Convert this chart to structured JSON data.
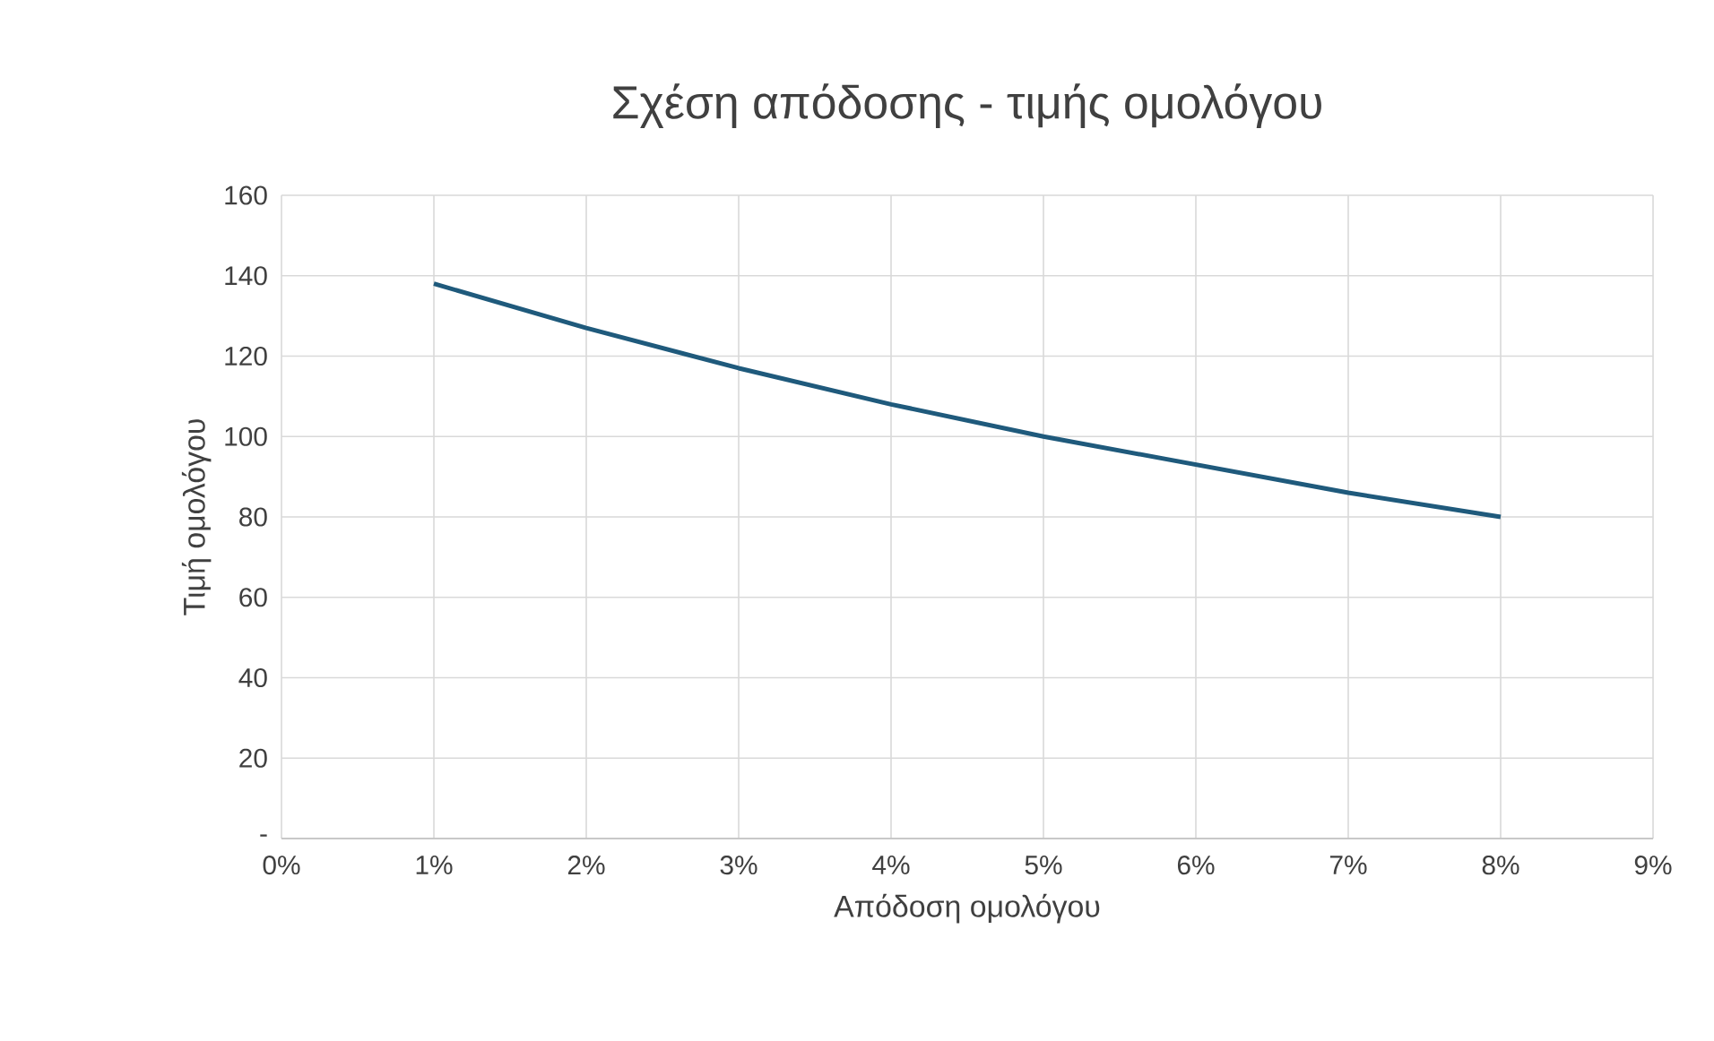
{
  "chart_data": {
    "type": "line",
    "title": "Σχέση απόδοσης - τιμής ομολόγου",
    "xlabel": "Απόδοση ομολόγου",
    "ylabel": "Τιμή ομολόγου",
    "x": [
      1,
      2,
      3,
      4,
      5,
      6,
      7,
      8
    ],
    "series": [
      {
        "color": "#1f5a7c",
        "values": [
          138,
          127,
          117,
          108,
          100,
          93,
          86,
          80
        ]
      }
    ],
    "xlim": [
      0,
      9
    ],
    "xticks": [
      {
        "value": 0,
        "label": "0%"
      },
      {
        "value": 1,
        "label": "1%"
      },
      {
        "value": 2,
        "label": "2%"
      },
      {
        "value": 3,
        "label": "3%"
      },
      {
        "value": 4,
        "label": "4%"
      },
      {
        "value": 5,
        "label": "5%"
      },
      {
        "value": 6,
        "label": "6%"
      },
      {
        "value": 7,
        "label": "7%"
      },
      {
        "value": 8,
        "label": "8%"
      },
      {
        "value": 9,
        "label": "9%"
      }
    ],
    "ylim": [
      0,
      160
    ],
    "yticks": [
      {
        "value": 0,
        "label": "-"
      },
      20,
      40,
      60,
      80,
      100,
      120,
      140,
      160
    ],
    "grid": true,
    "marker": "none",
    "line_style": "solid"
  }
}
